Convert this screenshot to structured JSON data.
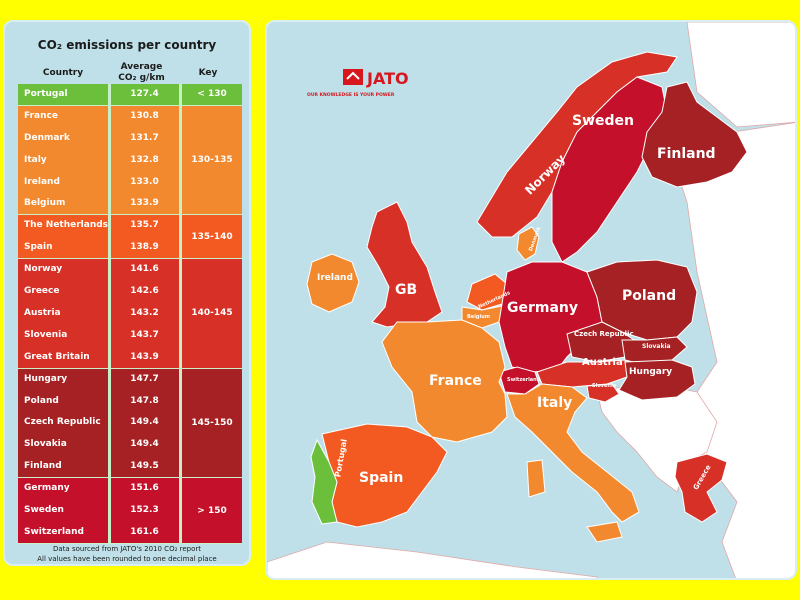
{
  "table": {
    "title": "CO₂ emissions per country",
    "headers": {
      "country": "Country",
      "average_line1": "Average",
      "average_line2": "CO₂ g/km",
      "key": "Key"
    },
    "bands": [
      {
        "key": "< 130",
        "color": "#6cbf3a",
        "rows": [
          {
            "country": "Portugal",
            "value": "127.4"
          }
        ]
      },
      {
        "key": "130-135",
        "color": "#f2892e",
        "rows": [
          {
            "country": "France",
            "value": "130.8"
          },
          {
            "country": "Denmark",
            "value": "131.7"
          },
          {
            "country": "Italy",
            "value": "132.8"
          },
          {
            "country": "Ireland",
            "value": "133.0"
          },
          {
            "country": "Belgium",
            "value": "133.9"
          }
        ]
      },
      {
        "key": "135-140",
        "color": "#f25a22",
        "rows": [
          {
            "country": "The Netherlands",
            "value": "135.7"
          },
          {
            "country": "Spain",
            "value": "138.9"
          }
        ]
      },
      {
        "key": "140-145",
        "color": "#d63027",
        "rows": [
          {
            "country": "Norway",
            "value": "141.6"
          },
          {
            "country": "Greece",
            "value": "142.6"
          },
          {
            "country": "Austria",
            "value": "143.2"
          },
          {
            "country": "Slovenia",
            "value": "143.7"
          },
          {
            "country": "Great Britain",
            "value": "143.9"
          }
        ]
      },
      {
        "key": "145-150",
        "color": "#a52123",
        "rows": [
          {
            "country": "Hungary",
            "value": "147.7"
          },
          {
            "country": "Poland",
            "value": "147.8"
          },
          {
            "country": "Czech Republic",
            "value": "149.4"
          },
          {
            "country": "Slovakia",
            "value": "149.4"
          },
          {
            "country": "Finland",
            "value": "149.5"
          }
        ]
      },
      {
        "key": "> 150",
        "color": "#c4102a",
        "rows": [
          {
            "country": "Germany",
            "value": "151.6"
          },
          {
            "country": "Sweden",
            "value": "152.3"
          },
          {
            "country": "Switzerland",
            "value": "161.6"
          }
        ]
      }
    ],
    "footnote_line1": "Data sourced from JATO's 2010 CO₂ report",
    "footnote_line2": "All values have been rounded to one decimal place"
  },
  "logo": {
    "name": "JATO",
    "tagline": "OUR KNOWLEDGE IS YOUR POWER",
    "color": "#d7161e"
  },
  "map": {
    "sea_color": "#bfe0e8",
    "land_color": "#ffffff",
    "labels": {
      "sweden": "Sweden",
      "finland": "Finland",
      "norway": "Norway",
      "denmark": "Denmark",
      "gb": "GB",
      "ireland": "Ireland",
      "germany": "Germany",
      "poland": "Poland",
      "netherlands": "Netherlands",
      "belgium": "Belgium",
      "czech": "Czech Republic",
      "slovakia": "Slovakia",
      "austria": "Austria",
      "hungary": "Hungary",
      "switzerland": "Switzerland",
      "slovenia": "Slovenia",
      "france": "France",
      "italy": "Italy",
      "spain": "Spain",
      "portugal": "Portugal",
      "greece": "Greece"
    }
  }
}
